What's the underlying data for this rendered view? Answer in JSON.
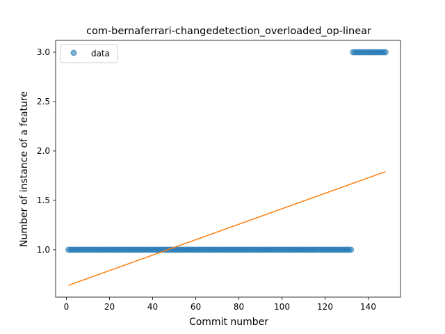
{
  "chart_data": {
    "type": "scatter",
    "title": "com-bernaferrari-changedetection_overloaded_op-linear",
    "xlabel": "Commit number",
    "ylabel": "Number of instance of a feature",
    "xlim": [
      -5,
      155
    ],
    "ylim": [
      0.52,
      3.12
    ],
    "xticks": [
      0,
      20,
      40,
      60,
      80,
      100,
      120,
      140
    ],
    "yticks": [
      1.0,
      1.5,
      2.0,
      2.5,
      3.0
    ],
    "xtick_labels": [
      "0",
      "20",
      "40",
      "60",
      "80",
      "100",
      "120",
      "140"
    ],
    "ytick_labels": [
      "1.0",
      "1.5",
      "2.0",
      "2.5",
      "3.0"
    ],
    "grid": false,
    "legend": {
      "position": "top-left",
      "entries": [
        "data"
      ]
    },
    "series": [
      {
        "name": "data",
        "kind": "scatter",
        "color": "#1f77b4",
        "runs": [
          {
            "x_start": 1,
            "x_end": 132,
            "y": 1.0
          },
          {
            "x_start": 133,
            "x_end": 148,
            "y": 3.0
          }
        ]
      },
      {
        "kind": "line",
        "color": "#ff7f0e",
        "x": [
          1,
          148
        ],
        "y": [
          0.64,
          1.79
        ]
      }
    ]
  }
}
